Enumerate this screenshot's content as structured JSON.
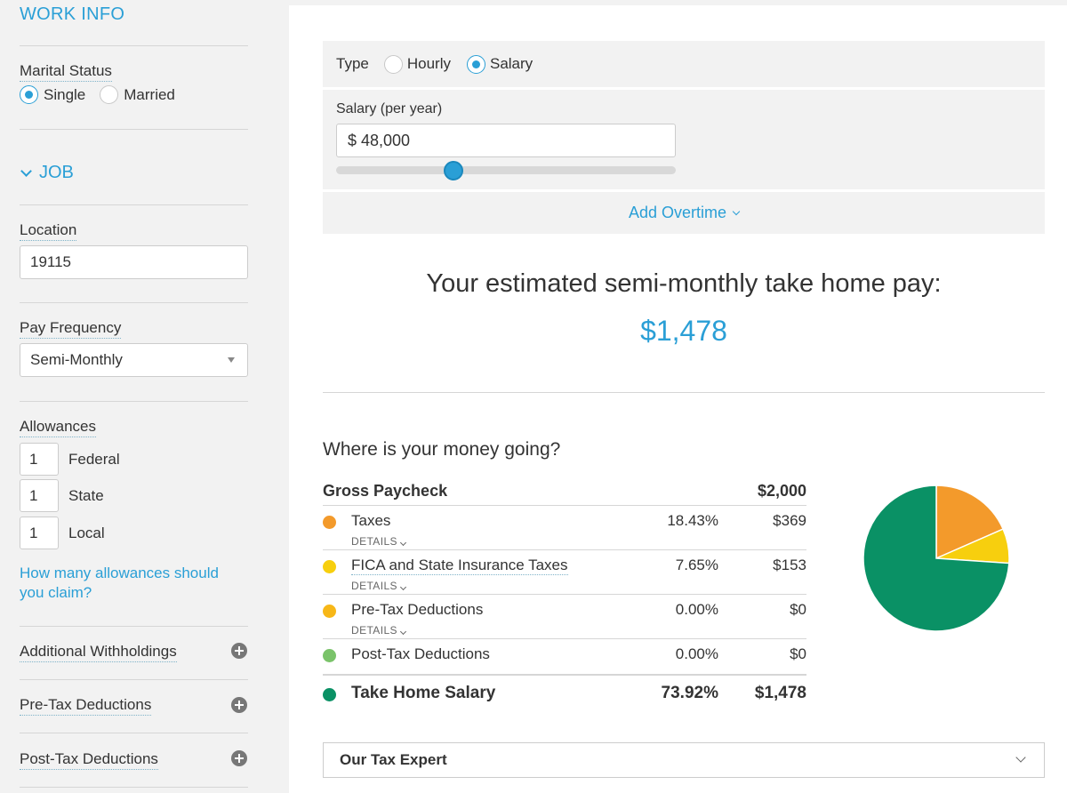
{
  "sidebar": {
    "title": "WORK INFO",
    "marital_status": {
      "label": "Marital Status",
      "options": [
        "Single",
        "Married"
      ],
      "selected": "Single"
    },
    "job_section": "JOB",
    "location": {
      "label": "Location",
      "value": "19115"
    },
    "pay_frequency": {
      "label": "Pay Frequency",
      "value": "Semi-Monthly"
    },
    "allowances": {
      "label": "Allowances",
      "items": [
        {
          "value": "1",
          "label": "Federal"
        },
        {
          "value": "1",
          "label": "State"
        },
        {
          "value": "1",
          "label": "Local"
        }
      ],
      "help_link": "How many allowances should you claim?"
    },
    "additional_withholdings": "Additional Withholdings",
    "pre_tax_deductions": "Pre-Tax Deductions",
    "post_tax_deductions": "Post-Tax Deductions"
  },
  "main": {
    "type": {
      "label": "Type",
      "options": [
        "Hourly",
        "Salary"
      ],
      "selected": "Salary"
    },
    "salary": {
      "label": "Salary (per year)",
      "value": "$ 48,000",
      "slider_fraction": 0.345
    },
    "add_overtime": "Add Overtime",
    "headline": "Your estimated semi-monthly take home pay:",
    "headline_amount": "$1,478",
    "money_title": "Where is your money going?",
    "breakdown": {
      "gross_label": "Gross Paycheck",
      "gross_amount": "$2,000",
      "details_label": "DETAILS",
      "rows": [
        {
          "name": "Taxes",
          "pct": "18.43%",
          "amount": "$369",
          "color": "#f39a2b",
          "details": true
        },
        {
          "name": "FICA and State Insurance Taxes",
          "pct": "7.65%",
          "amount": "$153",
          "color": "#f7cf0e",
          "details": true
        },
        {
          "name": "Pre-Tax Deductions",
          "pct": "0.00%",
          "amount": "$0",
          "color": "#f7b718",
          "details": true
        },
        {
          "name": "Post-Tax Deductions",
          "pct": "0.00%",
          "amount": "$0",
          "color": "#7ac36a",
          "details": false
        }
      ],
      "total": {
        "name": "Take Home Salary",
        "pct": "73.92%",
        "amount": "$1,478",
        "color": "#0a9165"
      }
    },
    "tax_expert": "Our Tax Expert"
  },
  "chart_data": {
    "type": "pie",
    "slices": [
      {
        "label": "Taxes",
        "value": 18.43,
        "color": "#f39a2b"
      },
      {
        "label": "FICA and State Insurance Taxes",
        "value": 7.65,
        "color": "#f7cf0e"
      },
      {
        "label": "Pre-Tax Deductions",
        "value": 0.0,
        "color": "#f7b718"
      },
      {
        "label": "Post-Tax Deductions",
        "value": 0.0,
        "color": "#7ac36a"
      },
      {
        "label": "Take Home Salary",
        "value": 73.92,
        "color": "#0a9165"
      }
    ]
  }
}
